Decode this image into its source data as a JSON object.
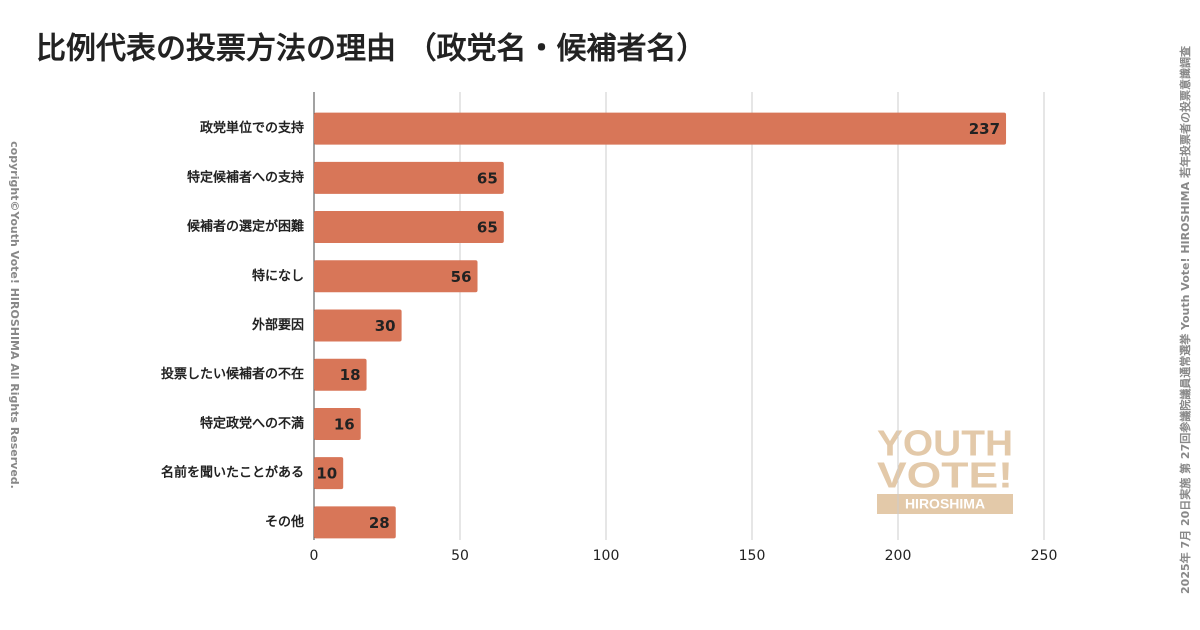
{
  "chart_data": {
    "type": "bar",
    "orientation": "horizontal",
    "title": "比例代表の投票方法の理由 （政党名・候補者名）",
    "categories": [
      "政党単位での支持",
      "特定候補者への支持",
      "候補者の選定が困難",
      "特になし",
      "外部要因",
      "投票したい候補者の不在",
      "特定政党への不満",
      "名前を聞いたことがある",
      "その他"
    ],
    "values": [
      237,
      65,
      65,
      56,
      30,
      18,
      16,
      10,
      28
    ],
    "color": "#d87658",
    "xlim": [
      0,
      250
    ],
    "xticks": [
      0,
      50,
      100,
      150,
      200,
      250
    ],
    "grid": true
  },
  "copyright": "copyright©Youth Vote! HIROSHIMA  All Rights Reserved.",
  "survey_note": "2025年 7月 20日実施 第 27回参議院議員通常選挙 Youth Vote! HIROSHIMA 若年投票者の投票意識調査",
  "logo": [
    "YOUTH",
    "VOTE!",
    "HIROSHIMA"
  ]
}
